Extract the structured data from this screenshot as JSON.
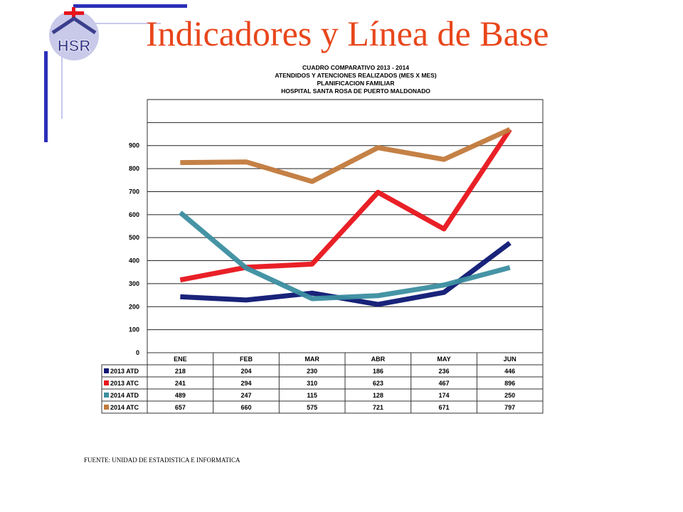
{
  "slide_title": "Indicadores y Línea de Base",
  "logo": {
    "letters": "HSR",
    "icon": "hospital-house-cross-logo"
  },
  "footer": "FUENTE: UNIDAD DE ESTADISTICA E INFORMATICA",
  "chart_data": {
    "type": "line",
    "title_lines": [
      "CUADRO COMPARATIVO 2013 - 2014",
      "ATENDIDOS Y ATENCIONES  REALIZADOS (MES X MES)",
      "PLANIFICACION FAMILIAR",
      "HOSPITAL   SANTA ROSA DE PUERTO MALDONADO"
    ],
    "categories": [
      "ENE",
      "FEB",
      "MAR",
      "ABR",
      "MAY",
      "JUN"
    ],
    "y_ticks": [
      0,
      100,
      200,
      300,
      400,
      500,
      600,
      700,
      800,
      900
    ],
    "ylim": [
      0,
      1100
    ],
    "grid": true,
    "legend": "data-table-below",
    "series": [
      {
        "name": "2013 ATD",
        "color": "#0d1773",
        "values": [
          218,
          204,
          230,
          186,
          236,
          446
        ],
        "plotted": [
          243,
          229,
          259,
          210,
          262,
          477
        ]
      },
      {
        "name": "2013 ATC",
        "color": "#e8141b",
        "values": [
          241,
          294,
          310,
          623,
          467,
          896
        ],
        "plotted": [
          316,
          371,
          385,
          697,
          538,
          970
        ]
      },
      {
        "name": "2014 ATD",
        "color": "#3b8ea0",
        "values": [
          489,
          247,
          115,
          128,
          174,
          250
        ],
        "plotted": [
          609,
          368,
          235,
          248,
          294,
          370
        ]
      },
      {
        "name": "2014 ATC",
        "color": "#c27a3c",
        "values": [
          657,
          660,
          575,
          721,
          671,
          797
        ],
        "plotted": [
          826,
          829,
          744,
          891,
          840,
          970
        ]
      }
    ]
  }
}
